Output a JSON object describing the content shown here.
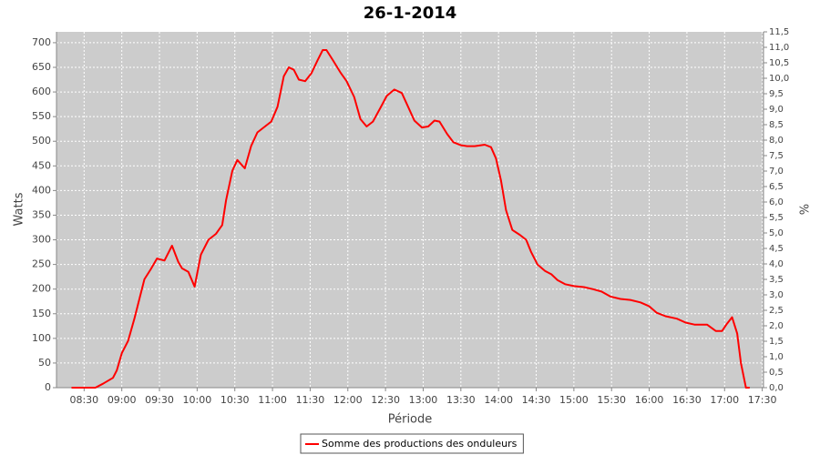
{
  "chart_data": {
    "type": "line",
    "title": "26-1-2014",
    "x_label": "Période",
    "y_label": "Watts",
    "y2_label": "%",
    "x": [
      "08:20",
      "08:39",
      "08:45",
      "08:53",
      "08:56",
      "09:00",
      "09:05",
      "09:10",
      "09:14",
      "09:18",
      "09:23",
      "09:28",
      "09:34",
      "09:40",
      "09:45",
      "09:48",
      "09:53",
      "09:58",
      "10:03",
      "10:09",
      "10:15",
      "10:20",
      "10:23",
      "10:28",
      "10:32",
      "10:38",
      "10:43",
      "10:48",
      "10:54",
      "10:59",
      "11:04",
      "11:09",
      "11:13",
      "11:17",
      "11:21",
      "11:26",
      "11:31",
      "11:36",
      "11:40",
      "11:43",
      "11:48",
      "11:54",
      "11:59",
      "12:05",
      "12:10",
      "12:15",
      "12:20",
      "12:26",
      "12:31",
      "12:37",
      "12:43",
      "12:48",
      "12:53",
      "12:59",
      "13:04",
      "13:09",
      "13:13",
      "13:19",
      "13:24",
      "13:30",
      "13:35",
      "13:41",
      "13:46",
      "13:49",
      "13:54",
      "13:58",
      "14:02",
      "14:06",
      "14:11",
      "14:17",
      "14:22",
      "14:26",
      "14:31",
      "14:37",
      "14:42",
      "14:47",
      "14:53",
      "15:00",
      "15:08",
      "15:15",
      "15:22",
      "15:29",
      "15:37",
      "15:45",
      "15:53",
      "16:00",
      "16:06",
      "16:13",
      "16:22",
      "16:29",
      "16:36",
      "16:46",
      "16:53",
      "16:58",
      "17:02",
      "17:06",
      "17:10",
      "17:13",
      "17:17",
      "17:20"
    ],
    "series": [
      {
        "name": "Somme des productions des onduleurs",
        "color": "#ff0000",
        "values": [
          0,
          0,
          8,
          20,
          35,
          70,
          95,
          140,
          180,
          220,
          240,
          262,
          258,
          288,
          255,
          242,
          235,
          205,
          270,
          300,
          312,
          330,
          380,
          440,
          462,
          445,
          490,
          518,
          530,
          540,
          570,
          632,
          650,
          645,
          625,
          622,
          638,
          665,
          685,
          685,
          665,
          640,
          622,
          590,
          545,
          530,
          540,
          568,
          592,
          605,
          598,
          570,
          542,
          528,
          530,
          542,
          540,
          515,
          498,
          492,
          490,
          490,
          492,
          493,
          488,
          465,
          420,
          360,
          320,
          310,
          300,
          275,
          250,
          237,
          230,
          218,
          210,
          206,
          204,
          200,
          195,
          185,
          180,
          178,
          173,
          165,
          152,
          145,
          140,
          132,
          128,
          128,
          115,
          115,
          130,
          143,
          110,
          50,
          0,
          0
        ]
      }
    ],
    "xlim": [
      "08:08",
      "17:31"
    ],
    "xticks": [
      "08:30",
      "09:00",
      "09:30",
      "10:00",
      "10:30",
      "11:00",
      "11:30",
      "12:00",
      "12:30",
      "13:00",
      "13:30",
      "14:00",
      "14:30",
      "15:00",
      "15:30",
      "16:00",
      "16:30",
      "17:00",
      "17:30"
    ],
    "ylim": [
      0,
      722
    ],
    "yticks": [
      0,
      50,
      100,
      150,
      200,
      250,
      300,
      350,
      400,
      450,
      500,
      550,
      600,
      650,
      700
    ],
    "y2lim": [
      0,
      11.5
    ],
    "y2ticks": [
      {
        "value": 0,
        "label": "0,0"
      },
      {
        "value": 0.5,
        "label": "0,5"
      },
      {
        "value": 1,
        "label": "1,0"
      },
      {
        "value": 1.5,
        "label": "1,5"
      },
      {
        "value": 2,
        "label": "2,0"
      },
      {
        "value": 2.5,
        "label": "2,5"
      },
      {
        "value": 3,
        "label": "3,0"
      },
      {
        "value": 3.5,
        "label": "3,5"
      },
      {
        "value": 4,
        "label": "4,0"
      },
      {
        "value": 4.5,
        "label": "4,5"
      },
      {
        "value": 5,
        "label": "5,0"
      },
      {
        "value": 5.5,
        "label": "5,5"
      },
      {
        "value": 6,
        "label": "6,0"
      },
      {
        "value": 6.5,
        "label": "6,5"
      },
      {
        "value": 7,
        "label": "7,0"
      },
      {
        "value": 7.5,
        "label": "7,5"
      },
      {
        "value": 8,
        "label": "8,0"
      },
      {
        "value": 8.5,
        "label": "8,5"
      },
      {
        "value": 9,
        "label": "9,0"
      },
      {
        "value": 9.5,
        "label": "9,5"
      },
      {
        "value": 10,
        "label": "10,0"
      },
      {
        "value": 10.5,
        "label": "10,5"
      },
      {
        "value": 11,
        "label": "11,0"
      },
      {
        "value": 11.5,
        "label": "11,5"
      }
    ],
    "grid": true,
    "background": "#cccccc",
    "legend": "bottom"
  }
}
